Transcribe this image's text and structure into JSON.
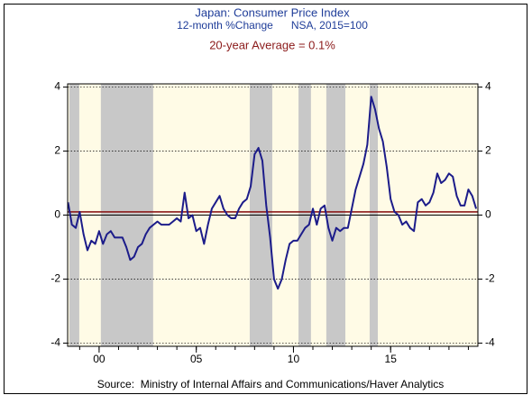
{
  "chart_data": {
    "type": "line",
    "title": "Japan: Consumer Price Index",
    "subtitle": "12-month %Change      NSA, 2015=100",
    "annotation": "20-year Average = 0.1%",
    "average": 0.1,
    "average_color": "#8b1a1a",
    "source": "Source:  Ministry of Internal Affairs and Communications/Haver Analytics",
    "x": [
      1998.4,
      1998.6,
      1998.8,
      1999.0,
      1999.2,
      1999.4,
      1999.6,
      1999.8,
      2000.0,
      2000.2,
      2000.4,
      2000.6,
      2000.8,
      2001.0,
      2001.2,
      2001.4,
      2001.6,
      2001.8,
      2002.0,
      2002.2,
      2002.4,
      2002.6,
      2002.8,
      2003.0,
      2003.2,
      2003.4,
      2003.6,
      2003.8,
      2004.0,
      2004.2,
      2004.4,
      2004.6,
      2004.8,
      2005.0,
      2005.2,
      2005.4,
      2005.6,
      2005.8,
      2006.0,
      2006.2,
      2006.4,
      2006.6,
      2006.8,
      2007.0,
      2007.2,
      2007.4,
      2007.6,
      2007.8,
      2008.0,
      2008.2,
      2008.4,
      2008.6,
      2008.8,
      2009.0,
      2009.2,
      2009.4,
      2009.6,
      2009.8,
      2010.0,
      2010.2,
      2010.4,
      2010.6,
      2010.8,
      2011.0,
      2011.2,
      2011.4,
      2011.6,
      2011.8,
      2012.0,
      2012.2,
      2012.4,
      2012.6,
      2012.8,
      2013.0,
      2013.2,
      2013.4,
      2013.6,
      2013.8,
      2014.0,
      2014.2,
      2014.4,
      2014.6,
      2014.8,
      2015.0,
      2015.2,
      2015.4,
      2015.6,
      2015.8,
      2016.0,
      2016.2,
      2016.4,
      2016.6,
      2016.8,
      2017.0,
      2017.2,
      2017.4,
      2017.6,
      2017.8,
      2018.0,
      2018.2,
      2018.4,
      2018.6,
      2018.8,
      2019.0,
      2019.2,
      2019.4
    ],
    "series": [
      {
        "color": "#1c1c8a",
        "values": [
          0.4,
          -0.3,
          -0.4,
          0.1,
          -0.6,
          -1.1,
          -0.8,
          -0.9,
          -0.5,
          -0.9,
          -0.6,
          -0.5,
          -0.7,
          -0.7,
          -0.7,
          -1.0,
          -1.4,
          -1.3,
          -1.0,
          -0.9,
          -0.6,
          -0.4,
          -0.3,
          -0.2,
          -0.3,
          -0.3,
          -0.3,
          -0.2,
          -0.1,
          -0.2,
          0.7,
          -0.1,
          0.0,
          -0.5,
          -0.4,
          -0.9,
          -0.3,
          0.2,
          0.4,
          0.6,
          0.2,
          0.0,
          -0.1,
          -0.1,
          0.2,
          0.4,
          0.5,
          0.9,
          1.9,
          2.1,
          1.7,
          0.3,
          -0.7,
          -2.0,
          -2.3,
          -2.0,
          -1.4,
          -0.9,
          -0.8,
          -0.8,
          -0.6,
          -0.4,
          -0.3,
          0.2,
          -0.3,
          0.2,
          0.3,
          -0.4,
          -0.8,
          -0.4,
          -0.5,
          -0.4,
          -0.4,
          0.2,
          0.8,
          1.2,
          1.6,
          2.2,
          3.7,
          3.3,
          2.7,
          2.3,
          1.5,
          0.5,
          0.1,
          0.0,
          -0.3,
          -0.2,
          -0.4,
          -0.5,
          0.4,
          0.5,
          0.3,
          0.4,
          0.7,
          1.3,
          1.0,
          1.1,
          1.3,
          1.2,
          0.6,
          0.3,
          0.3,
          0.8,
          0.6,
          0.2
        ]
      }
    ],
    "xlim": [
      1998.38,
      2019.49
    ],
    "xticks": [
      {
        "value": 2000,
        "label": "00"
      },
      {
        "value": 2005,
        "label": "05"
      },
      {
        "value": 2010,
        "label": "10"
      },
      {
        "value": 2015,
        "label": "15"
      }
    ],
    "xminor_ticks": [
      1999,
      2000,
      2001,
      2002,
      2003,
      2004,
      2005,
      2006,
      2007,
      2008,
      2009,
      2010,
      2011,
      2012,
      2013,
      2014,
      2015,
      2016,
      2017,
      2018,
      2019
    ],
    "ylim": [
      -4.1,
      4.1
    ],
    "yticks": [
      -4,
      -2,
      0,
      2,
      4
    ],
    "shaded_periods": [
      [
        1998.47,
        1998.98
      ],
      [
        2000.09,
        2002.78
      ],
      [
        2007.75,
        2008.91
      ],
      [
        2010.26,
        2010.9
      ],
      [
        2011.69,
        2012.67
      ],
      [
        2013.92,
        2014.34
      ]
    ],
    "shade_color": "#c8c8c8",
    "plot_background": "#fffbe6",
    "grid": true,
    "zero_line": true,
    "right_axis": true
  }
}
